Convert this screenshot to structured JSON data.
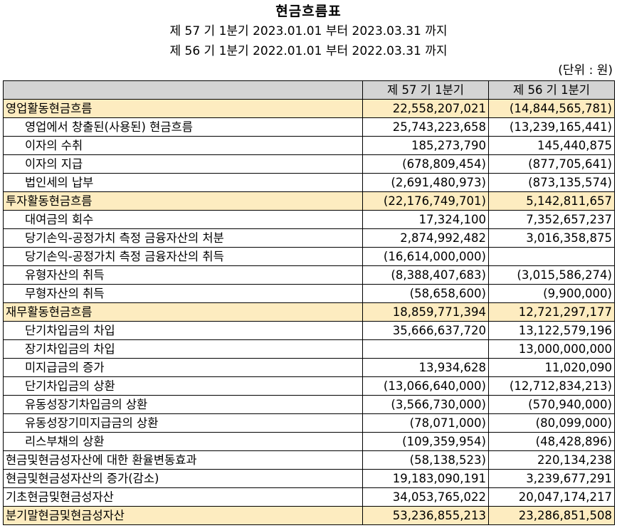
{
  "document": {
    "title": "현금흐름표",
    "period_current": "제 57 기 1분기 2023.01.01 부터 2023.03.31 까지",
    "period_prior": "제 56 기 1분기 2022.01.01 부터 2022.03.31 까지",
    "unit": "(단위 : 원)"
  },
  "table": {
    "headers": [
      "",
      "제 57 기 1분기",
      "제 56 기 1분기"
    ],
    "rows": [
      {
        "label": "영업활동현금흐름",
        "current": "22,558,207,021",
        "prior": "(14,844,565,781)",
        "type": "section"
      },
      {
        "label": "영업에서 창출된(사용된) 현금흐름",
        "current": "25,743,223,658",
        "prior": "(13,239,165,441)",
        "type": "item"
      },
      {
        "label": "이자의 수취",
        "current": "185,273,790",
        "prior": "145,440,875",
        "type": "item"
      },
      {
        "label": "이자의 지급",
        "current": "(678,809,454)",
        "prior": "(877,705,641)",
        "type": "item"
      },
      {
        "label": "법인세의 납부",
        "current": "(2,691,480,973)",
        "prior": "(873,135,574)",
        "type": "item"
      },
      {
        "label": "투자활동현금흐름",
        "current": "(22,176,749,701)",
        "prior": "5,142,811,657",
        "type": "section"
      },
      {
        "label": "대여금의 회수",
        "current": "17,324,100",
        "prior": "7,352,657,237",
        "type": "item"
      },
      {
        "label": "당기손익-공정가치 측정 금융자산의 처분",
        "current": "2,874,992,482",
        "prior": "3,016,358,875",
        "type": "item"
      },
      {
        "label": "당기손익-공정가치 측정 금융자산의 취득",
        "current": "(16,614,000,000)",
        "prior": "",
        "type": "item"
      },
      {
        "label": "유형자산의 취득",
        "current": "(8,388,407,683)",
        "prior": "(3,015,586,274)",
        "type": "item"
      },
      {
        "label": "무형자산의 취득",
        "current": "(58,658,600)",
        "prior": "(9,900,000)",
        "type": "item"
      },
      {
        "label": "재무활동현금흐름",
        "current": "18,859,771,394",
        "prior": "12,721,297,177",
        "type": "section"
      },
      {
        "label": "단기차입금의 차입",
        "current": "35,666,637,720",
        "prior": "13,122,579,196",
        "type": "item"
      },
      {
        "label": "장기차입금의 차입",
        "current": "",
        "prior": "13,000,000,000",
        "type": "item"
      },
      {
        "label": "미지급금의 증가",
        "current": "13,934,628",
        "prior": "11,020,090",
        "type": "item"
      },
      {
        "label": "단기차입금의 상환",
        "current": "(13,066,640,000)",
        "prior": "(12,712,834,213)",
        "type": "item"
      },
      {
        "label": "유동성장기차입금의 상환",
        "current": "(3,566,730,000)",
        "prior": "(570,940,000)",
        "type": "item"
      },
      {
        "label": "유동성장기미지급금의 상환",
        "current": "(78,071,000)",
        "prior": "(80,099,000)",
        "type": "item"
      },
      {
        "label": "리스부채의 상환",
        "current": "(109,359,954)",
        "prior": "(48,428,896)",
        "type": "item"
      },
      {
        "label": "현금및현금성자산에 대한 환율변동효과",
        "current": "(58,138,523)",
        "prior": "220,134,238",
        "type": "top"
      },
      {
        "label": "현금및현금성자산의 증가(감소)",
        "current": "19,183,090,191",
        "prior": "3,239,677,291",
        "type": "top"
      },
      {
        "label": "기초현금및현금성자산",
        "current": "34,053,765,022",
        "prior": "20,047,174,217",
        "type": "top"
      },
      {
        "label": "분기말현금및현금성자산",
        "current": "53,236,855,213",
        "prior": "23,286,851,508",
        "type": "section"
      }
    ]
  }
}
